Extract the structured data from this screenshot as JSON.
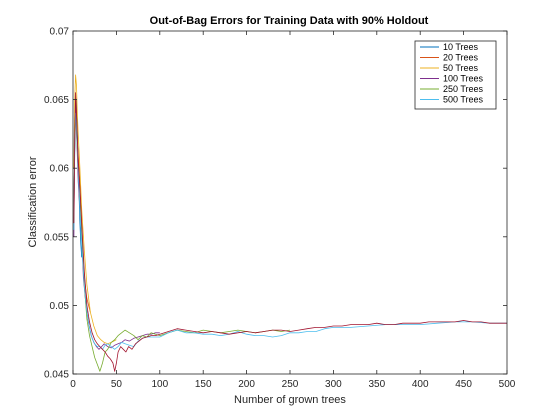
{
  "chart_data": {
    "type": "line",
    "title": "Out-of-Bag Errors for Training Data with 90% Holdout",
    "xlabel": "Number of grown trees",
    "ylabel": "Classification error",
    "xlim": [
      0,
      500
    ],
    "ylim": [
      0.045,
      0.07
    ],
    "xticks": [
      0,
      50,
      100,
      150,
      200,
      250,
      300,
      350,
      400,
      450,
      500
    ],
    "yticks": [
      0.045,
      0.05,
      0.055,
      0.06,
      0.065,
      0.07
    ],
    "xtick_labels": [
      "0",
      "50",
      "100",
      "150",
      "200",
      "250",
      "300",
      "350",
      "400",
      "450",
      "500"
    ],
    "ytick_labels": [
      "0.045",
      "0.05",
      "0.055",
      "0.06",
      "0.065",
      "0.07"
    ],
    "grid": false,
    "legend_position": "top-right",
    "series": [
      {
        "name": "10 Trees",
        "color": "#0072BD",
        "x": [
          1,
          2,
          3,
          4,
          5,
          6,
          7,
          8,
          9,
          10
        ],
        "y": [
          0.057,
          0.061,
          0.064,
          0.065,
          0.063,
          0.06,
          0.058,
          0.056,
          0.0545,
          0.0535
        ]
      },
      {
        "name": "20 Trees",
        "color": "#D95319",
        "x": [
          1,
          2,
          3,
          4,
          5,
          6,
          8,
          10,
          12,
          14,
          16,
          18,
          20
        ],
        "y": [
          0.056,
          0.062,
          0.065,
          0.064,
          0.062,
          0.061,
          0.059,
          0.056,
          0.053,
          0.0515,
          0.0505,
          0.05,
          0.0495
        ]
      },
      {
        "name": "50 Trees",
        "color": "#EDB120",
        "x": [
          1,
          2,
          3,
          4,
          5,
          6,
          8,
          10,
          13,
          16,
          20,
          24,
          28,
          32,
          36,
          40,
          44,
          47,
          50
        ],
        "y": [
          0.06,
          0.065,
          0.0668,
          0.066,
          0.064,
          0.0625,
          0.06,
          0.057,
          0.054,
          0.0515,
          0.0495,
          0.0485,
          0.0478,
          0.0475,
          0.0473,
          0.0472,
          0.0473,
          0.0474,
          0.0475
        ]
      },
      {
        "name": "100 Trees",
        "color": "#7E2F8E",
        "x": [
          1,
          2,
          3,
          4,
          5,
          6,
          8,
          10,
          12,
          15,
          18,
          21,
          24,
          27,
          30,
          33,
          36,
          40,
          44,
          48,
          52,
          56,
          60,
          65,
          70,
          75,
          80,
          85,
          90,
          95,
          100
        ],
        "y": [
          0.055,
          0.062,
          0.0645,
          0.063,
          0.061,
          0.059,
          0.057,
          0.055,
          0.052,
          0.05,
          0.0487,
          0.0478,
          0.0473,
          0.047,
          0.0468,
          0.047,
          0.0472,
          0.047,
          0.0469,
          0.0471,
          0.0472,
          0.0473,
          0.0475,
          0.0474,
          0.0476,
          0.0477,
          0.0478,
          0.0479,
          0.0479,
          0.048,
          0.048
        ]
      },
      {
        "name": "250 Trees",
        "color": "#77AC30",
        "x": [
          1,
          2,
          3,
          4,
          6,
          8,
          10,
          13,
          16,
          19,
          22,
          25,
          28,
          31,
          34,
          37,
          40,
          44,
          48,
          52,
          56,
          60,
          65,
          70,
          75,
          80,
          85,
          90,
          95,
          100,
          110,
          120,
          130,
          140,
          150,
          160,
          170,
          180,
          190,
          200,
          210,
          220,
          230,
          240,
          250
        ],
        "y": [
          0.056,
          0.063,
          0.064,
          0.0625,
          0.06,
          0.0575,
          0.055,
          0.0515,
          0.049,
          0.0478,
          0.047,
          0.0462,
          0.0457,
          0.0452,
          0.0458,
          0.0466,
          0.0468,
          0.0473,
          0.0475,
          0.0478,
          0.048,
          0.0482,
          0.048,
          0.0478,
          0.0475,
          0.0478,
          0.0477,
          0.048,
          0.0479,
          0.0478,
          0.048,
          0.0482,
          0.0481,
          0.048,
          0.0482,
          0.0481,
          0.048,
          0.0481,
          0.0482,
          0.0481,
          0.048,
          0.0481,
          0.0482,
          0.0481,
          0.0482
        ]
      },
      {
        "name": "500 Trees",
        "color": "#4DBEEE",
        "x": [
          1,
          2,
          3,
          4,
          6,
          8,
          10,
          13,
          16,
          19,
          22,
          25,
          28,
          31,
          34,
          37,
          40,
          44,
          48,
          52,
          56,
          60,
          65,
          70,
          75,
          80,
          85,
          90,
          95,
          100,
          110,
          120,
          130,
          140,
          150,
          160,
          170,
          180,
          190,
          200,
          210,
          220,
          230,
          240,
          250,
          260,
          270,
          280,
          290,
          300,
          320,
          340,
          360,
          380,
          400,
          420,
          440,
          460,
          480,
          500
        ],
        "y": [
          0.0555,
          0.0625,
          0.064,
          0.0628,
          0.06,
          0.057,
          0.0545,
          0.0515,
          0.0495,
          0.0484,
          0.0476,
          0.0472,
          0.047,
          0.047,
          0.0468,
          0.0471,
          0.0472,
          0.047,
          0.0468,
          0.047,
          0.0473,
          0.0472,
          0.0471,
          0.047,
          0.0474,
          0.0476,
          0.0477,
          0.0477,
          0.0477,
          0.0477,
          0.048,
          0.0482,
          0.048,
          0.048,
          0.0479,
          0.0479,
          0.0478,
          0.0479,
          0.0481,
          0.0479,
          0.0478,
          0.0478,
          0.0477,
          0.0478,
          0.048,
          0.048,
          0.0481,
          0.0481,
          0.0483,
          0.0484,
          0.0484,
          0.0485,
          0.0486,
          0.0486,
          0.0486,
          0.0487,
          0.0488,
          0.0488,
          0.0487,
          0.0487
        ]
      },
      {
        "name": "",
        "color": "#A2142F",
        "x": [
          1,
          2,
          3,
          4,
          5,
          6,
          8,
          10,
          13,
          16,
          19,
          22,
          25,
          28,
          31,
          34,
          37,
          40,
          43,
          46,
          48,
          50,
          52,
          55,
          58,
          61,
          64,
          68,
          72,
          76,
          80,
          85,
          90,
          95,
          100,
          110,
          120,
          130,
          140,
          150,
          160,
          170,
          180,
          190,
          200,
          210,
          220,
          230,
          240,
          250,
          260,
          270,
          280,
          290,
          300,
          310,
          320,
          330,
          340,
          350,
          360,
          370,
          380,
          390,
          400,
          410,
          420,
          430,
          440,
          450,
          460,
          470,
          480,
          490,
          500
        ],
        "y": [
          0.056,
          0.062,
          0.0655,
          0.064,
          0.062,
          0.0605,
          0.0585,
          0.056,
          0.0525,
          0.05,
          0.0488,
          0.048,
          0.0475,
          0.0472,
          0.047,
          0.0468,
          0.0466,
          0.0463,
          0.0461,
          0.0458,
          0.0452,
          0.0458,
          0.0466,
          0.047,
          0.0468,
          0.0466,
          0.047,
          0.0468,
          0.0472,
          0.0474,
          0.0476,
          0.0477,
          0.0478,
          0.0478,
          0.0479,
          0.0481,
          0.0483,
          0.0482,
          0.0481,
          0.048,
          0.0481,
          0.048,
          0.0479,
          0.048,
          0.0481,
          0.048,
          0.0481,
          0.0482,
          0.0482,
          0.0481,
          0.0482,
          0.0483,
          0.0484,
          0.0484,
          0.0485,
          0.0485,
          0.0486,
          0.0486,
          0.0486,
          0.0487,
          0.0486,
          0.0486,
          0.0487,
          0.0487,
          0.0487,
          0.0488,
          0.0488,
          0.0488,
          0.0488,
          0.0489,
          0.0488,
          0.0488,
          0.0487,
          0.0487,
          0.0487
        ]
      }
    ]
  }
}
